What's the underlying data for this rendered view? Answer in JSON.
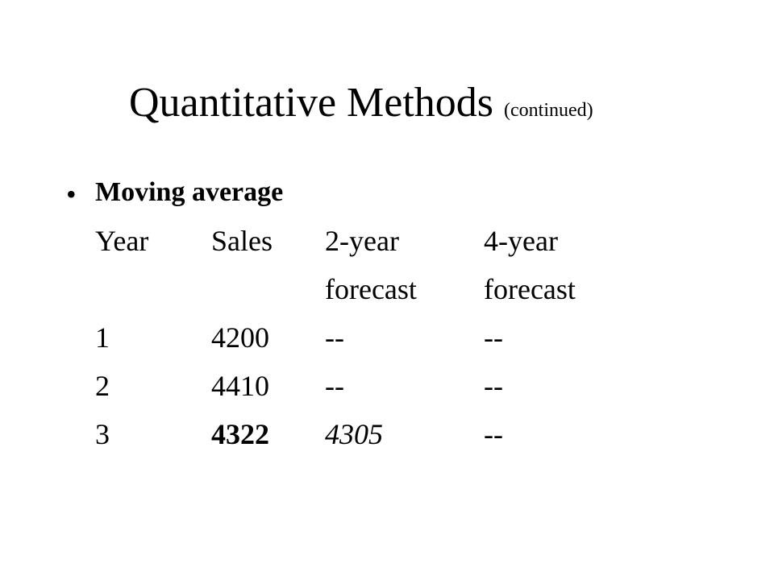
{
  "slide": {
    "title": "Quantitative Methods",
    "subtitle": "(continued)",
    "bullet": "Moving average",
    "table": {
      "columns": [
        {
          "lines": [
            "Year"
          ]
        },
        {
          "lines": [
            "Sales"
          ]
        },
        {
          "lines": [
            "2-year",
            "forecast"
          ]
        },
        {
          "lines": [
            "4-year",
            "forecast"
          ]
        }
      ],
      "rows": [
        [
          "1",
          "4200",
          "--",
          "--"
        ],
        [
          "2",
          "4410",
          "--",
          "--"
        ],
        [
          "3",
          "4322",
          "4305",
          "--"
        ]
      ]
    }
  }
}
